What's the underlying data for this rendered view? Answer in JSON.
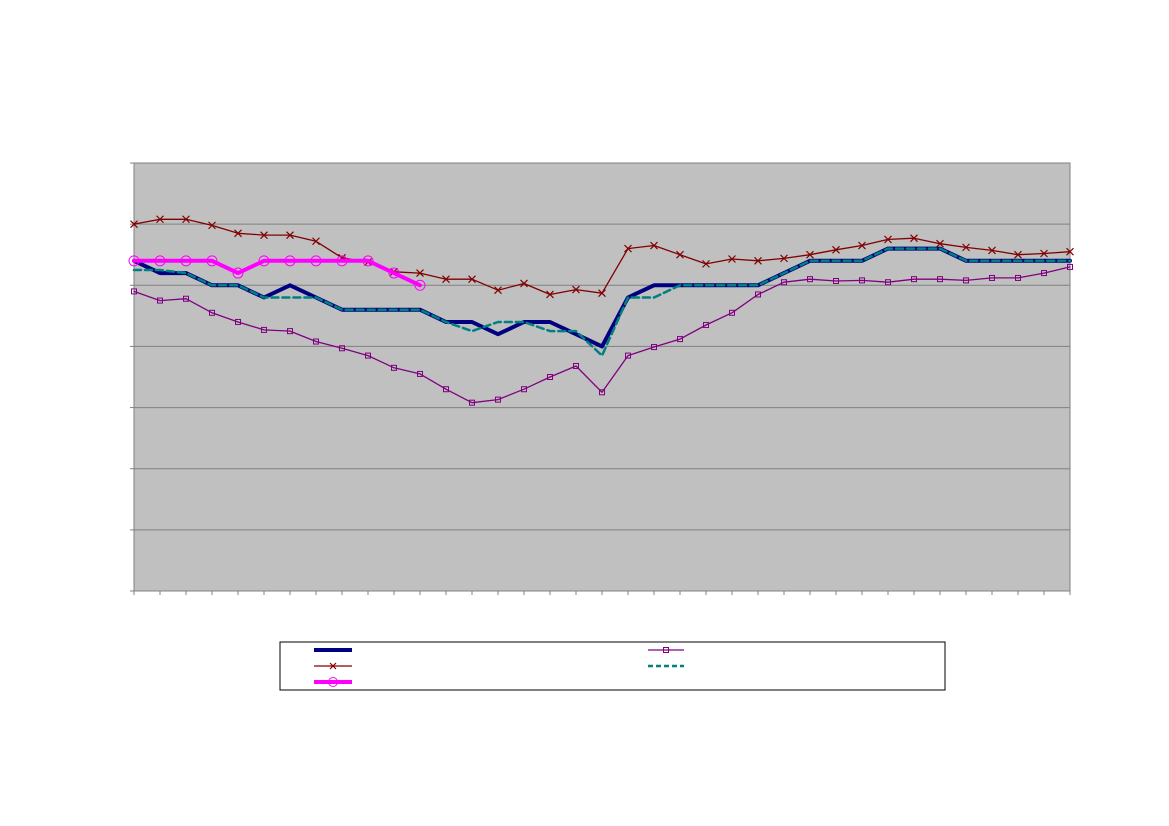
{
  "chart_data": {
    "type": "line",
    "title": "",
    "xlabel": "",
    "ylabel": "",
    "plot_background": "#c0c0c0",
    "grid": true,
    "legend_position": "bottom",
    "x_count": 37,
    "ylim": [
      0,
      7
    ],
    "y_grid_step": 1,
    "series": [
      {
        "key": "s1",
        "name": "",
        "color": "#000080",
        "dash": "solid",
        "marker": "none",
        "width": 4,
        "values": [
          5.4,
          5.2,
          5.2,
          5.0,
          5.0,
          4.8,
          5.0,
          4.8,
          4.6,
          4.6,
          4.6,
          4.6,
          4.4,
          4.4,
          4.2,
          4.4,
          4.4,
          4.2,
          4.0,
          4.8,
          5.0,
          5.0,
          5.0,
          5.0,
          5.0,
          5.2,
          5.4,
          5.4,
          5.4,
          5.6,
          5.6,
          5.6,
          5.4,
          5.4,
          5.4,
          5.4,
          5.4
        ]
      },
      {
        "key": "s2",
        "name": "",
        "color": "#800080",
        "dash": "solid",
        "marker": "square",
        "width": 1.3,
        "values": [
          4.9,
          4.75,
          4.78,
          4.55,
          4.4,
          4.27,
          4.25,
          4.08,
          3.97,
          3.85,
          3.65,
          3.55,
          3.3,
          3.08,
          3.13,
          3.3,
          3.5,
          3.68,
          3.25,
          3.85,
          3.99,
          4.12,
          4.35,
          4.55,
          4.85,
          5.05,
          5.1,
          5.07,
          5.08,
          5.05,
          5.1,
          5.1,
          5.08,
          5.12,
          5.12,
          5.2,
          5.3
        ]
      },
      {
        "key": "s3",
        "name": "",
        "color": "#800000",
        "dash": "solid",
        "marker": "x",
        "width": 1.3,
        "values": [
          6.0,
          6.08,
          6.08,
          5.98,
          5.85,
          5.82,
          5.82,
          5.72,
          5.45,
          5.38,
          5.22,
          5.2,
          5.1,
          5.1,
          4.92,
          5.03,
          4.85,
          4.93,
          4.87,
          5.6,
          5.65,
          5.5,
          5.35,
          5.43,
          5.4,
          5.44,
          5.5,
          5.58,
          5.65,
          5.75,
          5.77,
          5.68,
          5.62,
          5.57,
          5.5,
          5.52,
          5.55
        ]
      },
      {
        "key": "s4",
        "name": "",
        "color": "#008080",
        "dash": "dashed",
        "marker": "none",
        "width": 2.5,
        "values": [
          5.25,
          5.25,
          5.2,
          5.0,
          5.0,
          4.8,
          4.8,
          4.8,
          4.6,
          4.6,
          4.6,
          4.6,
          4.4,
          4.25,
          4.4,
          4.4,
          4.25,
          4.25,
          3.85,
          4.8,
          4.8,
          5.0,
          5.0,
          5.0,
          5.0,
          5.2,
          5.4,
          5.4,
          5.4,
          5.6,
          5.6,
          5.6,
          5.4,
          5.4,
          5.4,
          5.4,
          5.4
        ]
      },
      {
        "key": "s5",
        "name": "",
        "color": "#ff00ff",
        "dash": "solid",
        "marker": "circle",
        "width": 4,
        "values": [
          5.4,
          5.4,
          5.4,
          5.4,
          5.2,
          5.4,
          5.4,
          5.4,
          5.4,
          5.4,
          5.2,
          5.0
        ]
      }
    ]
  }
}
